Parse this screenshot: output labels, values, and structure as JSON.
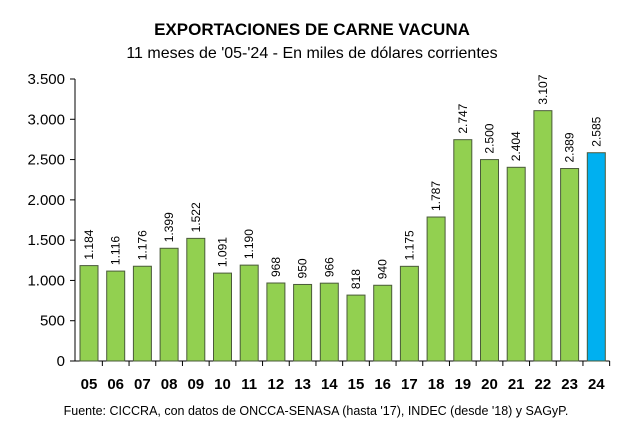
{
  "chart_data": {
    "type": "bar",
    "title": "EXPORTACIONES DE CARNE VACUNA",
    "subtitle": "11 meses de '05-'24 - En miles de dólares corrientes",
    "categories": [
      "05",
      "06",
      "07",
      "08",
      "09",
      "10",
      "11",
      "12",
      "13",
      "14",
      "15",
      "16",
      "17",
      "18",
      "19",
      "20",
      "21",
      "22",
      "23",
      "24"
    ],
    "values": [
      1184,
      1116,
      1176,
      1399,
      1522,
      1091,
      1190,
      968,
      950,
      966,
      818,
      940,
      1175,
      1787,
      2747,
      2500,
      2404,
      3107,
      2389,
      2585
    ],
    "value_labels": [
      "1.184",
      "1.116",
      "1.176",
      "1.399",
      "1.522",
      "1.091",
      "1.190",
      "968",
      "950",
      "966",
      "818",
      "940",
      "1.175",
      "1.787",
      "2.747",
      "2.500",
      "2.404",
      "3.107",
      "2.389",
      "2.585"
    ],
    "ylim": [
      0,
      3500
    ],
    "yticks": [
      0,
      500,
      1000,
      1500,
      2000,
      2500,
      3000,
      3500
    ],
    "ytick_labels": [
      "0",
      "500",
      "1.000",
      "1.500",
      "2.000",
      "2.500",
      "3.000",
      "3.500"
    ],
    "xlabel": "",
    "ylabel": "",
    "grid": false,
    "colors": {
      "bar": "#92D050",
      "highlight": "#00B0F0",
      "edge": "#4a5a3a"
    },
    "highlight_index": 19,
    "source": "Fuente: CICCRA, con datos de ONCCA-SENASA (hasta '17), INDEC (desde '18) y SAGyP."
  }
}
